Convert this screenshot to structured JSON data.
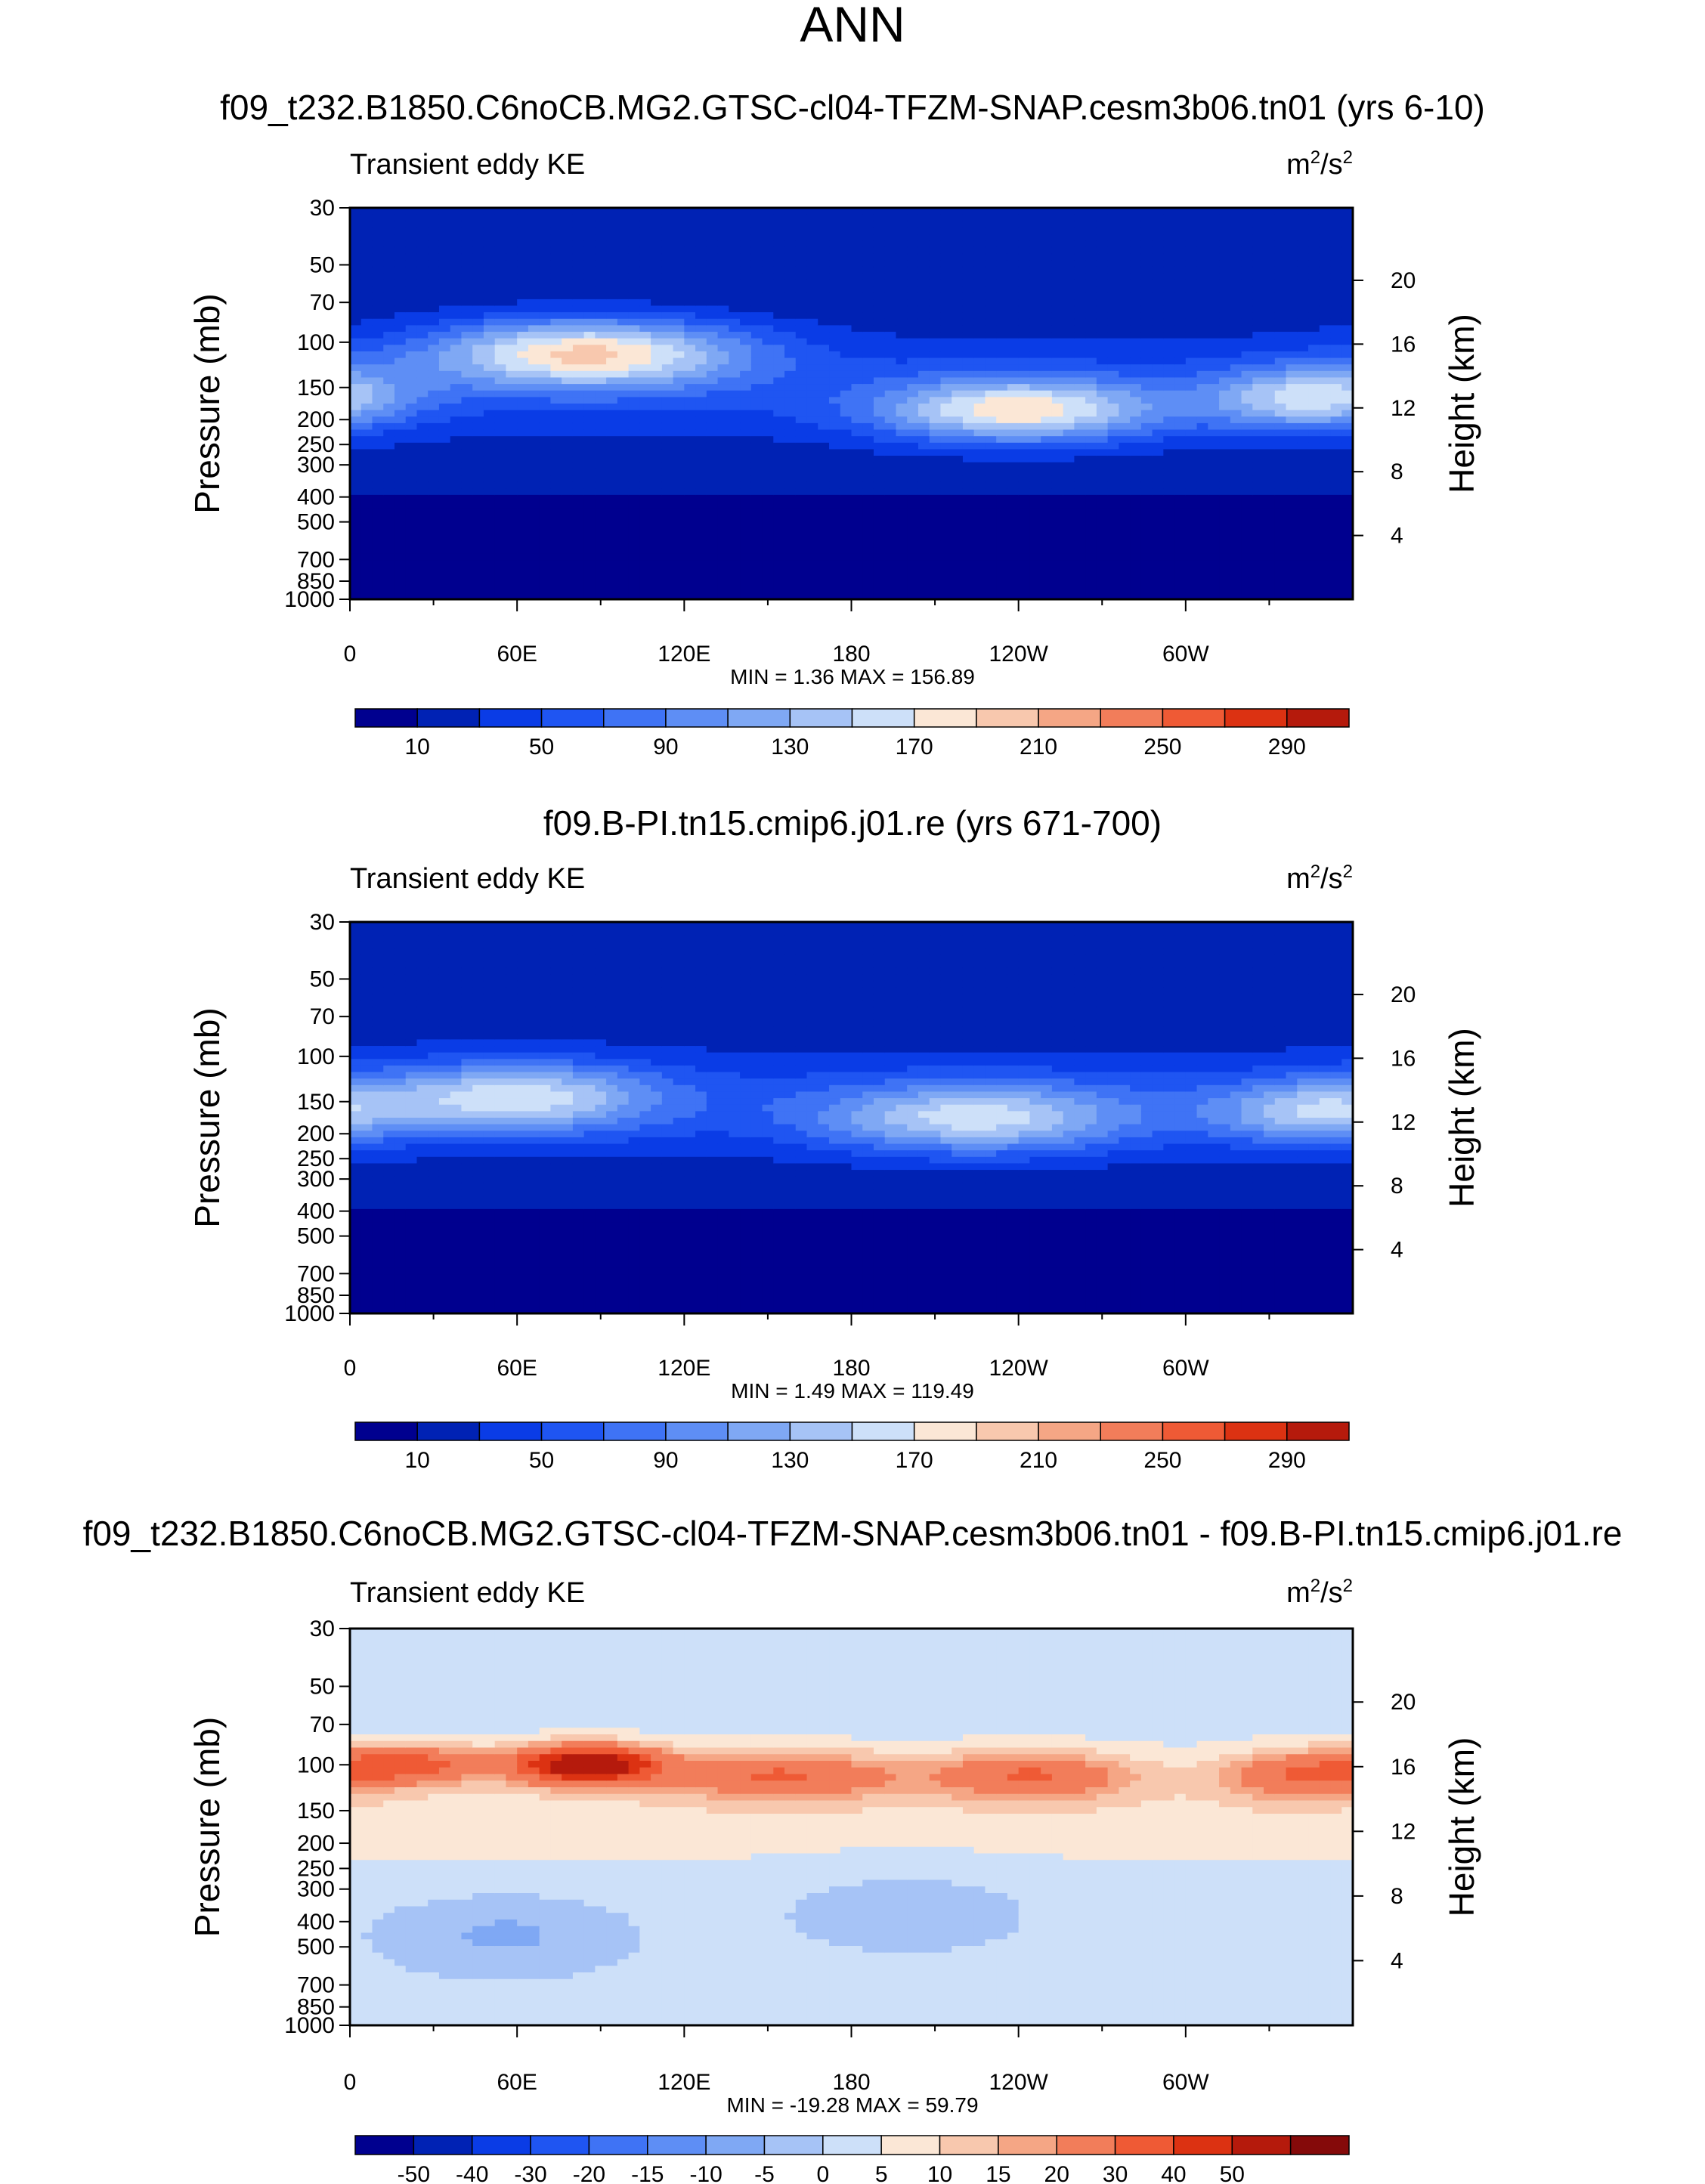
{
  "figure": {
    "title": "ANN"
  },
  "colormaps": {
    "absolute": [
      "#00008f",
      "#0022b4",
      "#0a3ce6",
      "#1f55f2",
      "#3f73f5",
      "#5e8ef5",
      "#7fa8f4",
      "#a6c3f6",
      "#cde0f9",
      "#fbe7d6",
      "#f8c8ae",
      "#f5a685",
      "#f27d5a",
      "#ef5a35",
      "#dc3212",
      "#b51a0c",
      "#850a0a"
    ],
    "difference": [
      "#00008f",
      "#0022b4",
      "#0a3ce6",
      "#1f55f2",
      "#3f73f5",
      "#5e8ef5",
      "#7fa8f4",
      "#a6c3f6",
      "#cde0f9",
      "#fbe7d6",
      "#f8c8ae",
      "#f5a685",
      "#f27d5a",
      "#ef5a35",
      "#dc3212",
      "#b51a0c",
      "#850a0a"
    ]
  },
  "chart_data": [
    {
      "type": "contour",
      "title": "f09_t232.B1850.C6noCB.MG2.GTSC-cl04-TFZM-SNAP.cesm3b06.tn01 (yrs 6-10)",
      "left_label": "Transient eddy KE",
      "units_base": "m",
      "units_sup": "2",
      "units_rest": "/s",
      "units_sup2": "2",
      "ylabel": "Pressure (mb)",
      "ylabel_right": "Height (km)",
      "y_ticks": [
        30,
        50,
        70,
        100,
        150,
        200,
        250,
        300,
        400,
        500,
        700,
        850,
        1000
      ],
      "y_tick_labels": [
        "30",
        "50",
        "70",
        "100",
        "150",
        "200",
        "250",
        "300",
        "400",
        "500",
        "700",
        "850",
        "1000"
      ],
      "y_right_ticks": [
        "20",
        "16",
        "12",
        "8",
        "4"
      ],
      "x_tick_labels": [
        "0",
        "60E",
        "120E",
        "180",
        "120W",
        "60W"
      ],
      "min_max_text": "MIN =   1.36  MAX = 156.89",
      "colorbar_labels": [
        "10",
        "50",
        "90",
        "130",
        "170",
        "210",
        "250",
        "290"
      ],
      "field": {
        "base": 8,
        "upper": 18,
        "jets": [
          {
            "lon": 85,
            "p": 110,
            "amp": 160,
            "wlon": 40,
            "wp": 0.22
          },
          {
            "lon": 240,
            "p": 185,
            "amp": 145,
            "wlon": 35,
            "wp": 0.2
          },
          {
            "lon": 345,
            "p": 165,
            "amp": 118,
            "wlon": 25,
            "wp": 0.2
          }
        ],
        "min": 1.36,
        "max": 156.89
      }
    },
    {
      "type": "contour",
      "title": "f09.B-PI.tn15.cmip6.j01.re (yrs 671-700)",
      "left_label": "Transient eddy KE",
      "units_base": "m",
      "units_sup": "2",
      "units_rest": "/s",
      "units_sup2": "2",
      "ylabel": "Pressure (mb)",
      "ylabel_right": "Height (km)",
      "y_ticks": [
        30,
        50,
        70,
        100,
        150,
        200,
        250,
        300,
        400,
        500,
        700,
        850,
        1000
      ],
      "y_tick_labels": [
        "30",
        "50",
        "70",
        "100",
        "150",
        "200",
        "250",
        "300",
        "400",
        "500",
        "700",
        "850",
        "1000"
      ],
      "y_right_ticks": [
        "20",
        "16",
        "12",
        "8",
        "4"
      ],
      "x_tick_labels": [
        "0",
        "60E",
        "120E",
        "180",
        "120W",
        "60W"
      ],
      "min_max_text": "MIN =   1.49  MAX = 119.49",
      "colorbar_labels": [
        "10",
        "50",
        "90",
        "130",
        "170",
        "210",
        "250",
        "290"
      ],
      "field": {
        "base": 8,
        "upper": 14,
        "jets": [
          {
            "lon": 60,
            "p": 145,
            "amp": 120,
            "wlon": 35,
            "wp": 0.22
          },
          {
            "lon": 225,
            "p": 175,
            "amp": 118,
            "wlon": 40,
            "wp": 0.22
          },
          {
            "lon": 345,
            "p": 165,
            "amp": 98,
            "wlon": 25,
            "wp": 0.2
          }
        ],
        "min": 1.49,
        "max": 119.49
      }
    },
    {
      "type": "contour",
      "title": "f09_t232.B1850.C6noCB.MG2.GTSC-cl04-TFZM-SNAP.cesm3b06.tn01 - f09.B-PI.tn15.cmip6.j01.re",
      "left_label": "Transient eddy KE",
      "units_base": "m",
      "units_sup": "2",
      "units_rest": "/s",
      "units_sup2": "2",
      "ylabel": "Pressure (mb)",
      "ylabel_right": "Height (km)",
      "y_ticks": [
        30,
        50,
        70,
        100,
        150,
        200,
        250,
        300,
        400,
        500,
        700,
        850,
        1000
      ],
      "y_tick_labels": [
        "30",
        "50",
        "70",
        "100",
        "150",
        "200",
        "250",
        "300",
        "400",
        "500",
        "700",
        "850",
        "1000"
      ],
      "y_right_ticks": [
        "20",
        "16",
        "12",
        "8",
        "4"
      ],
      "x_tick_labels": [
        "0",
        "60E",
        "120E",
        "180",
        "120W",
        "60W"
      ],
      "min_max_text": "MIN = -19.28  MAX =  59.79",
      "colorbar_labels": [
        "-50",
        "-40",
        "-30",
        "-20",
        "-15",
        "-10",
        "-5",
        "0",
        "5",
        "10",
        "15",
        "20",
        "30",
        "40",
        "50"
      ],
      "field": {
        "base": 2,
        "upper": 3,
        "jets": [
          {
            "lon": 20,
            "p": 100,
            "amp": 30,
            "wlon": 20,
            "wp": 0.12
          },
          {
            "lon": 85,
            "p": 100,
            "amp": 58,
            "wlon": 18,
            "wp": 0.12
          },
          {
            "lon": 155,
            "p": 110,
            "amp": 25,
            "wlon": 30,
            "wp": 0.15
          },
          {
            "lon": 245,
            "p": 110,
            "amp": 25,
            "wlon": 25,
            "wp": 0.15
          },
          {
            "lon": 340,
            "p": 110,
            "amp": 22,
            "wlon": 20,
            "wp": 0.15
          },
          {
            "lon": 55,
            "p": 450,
            "amp": -8,
            "wlon": 30,
            "wp": 0.25
          },
          {
            "lon": 200,
            "p": 350,
            "amp": -5,
            "wlon": 35,
            "wp": 0.3
          }
        ],
        "min": -19.28,
        "max": 59.79
      }
    }
  ]
}
